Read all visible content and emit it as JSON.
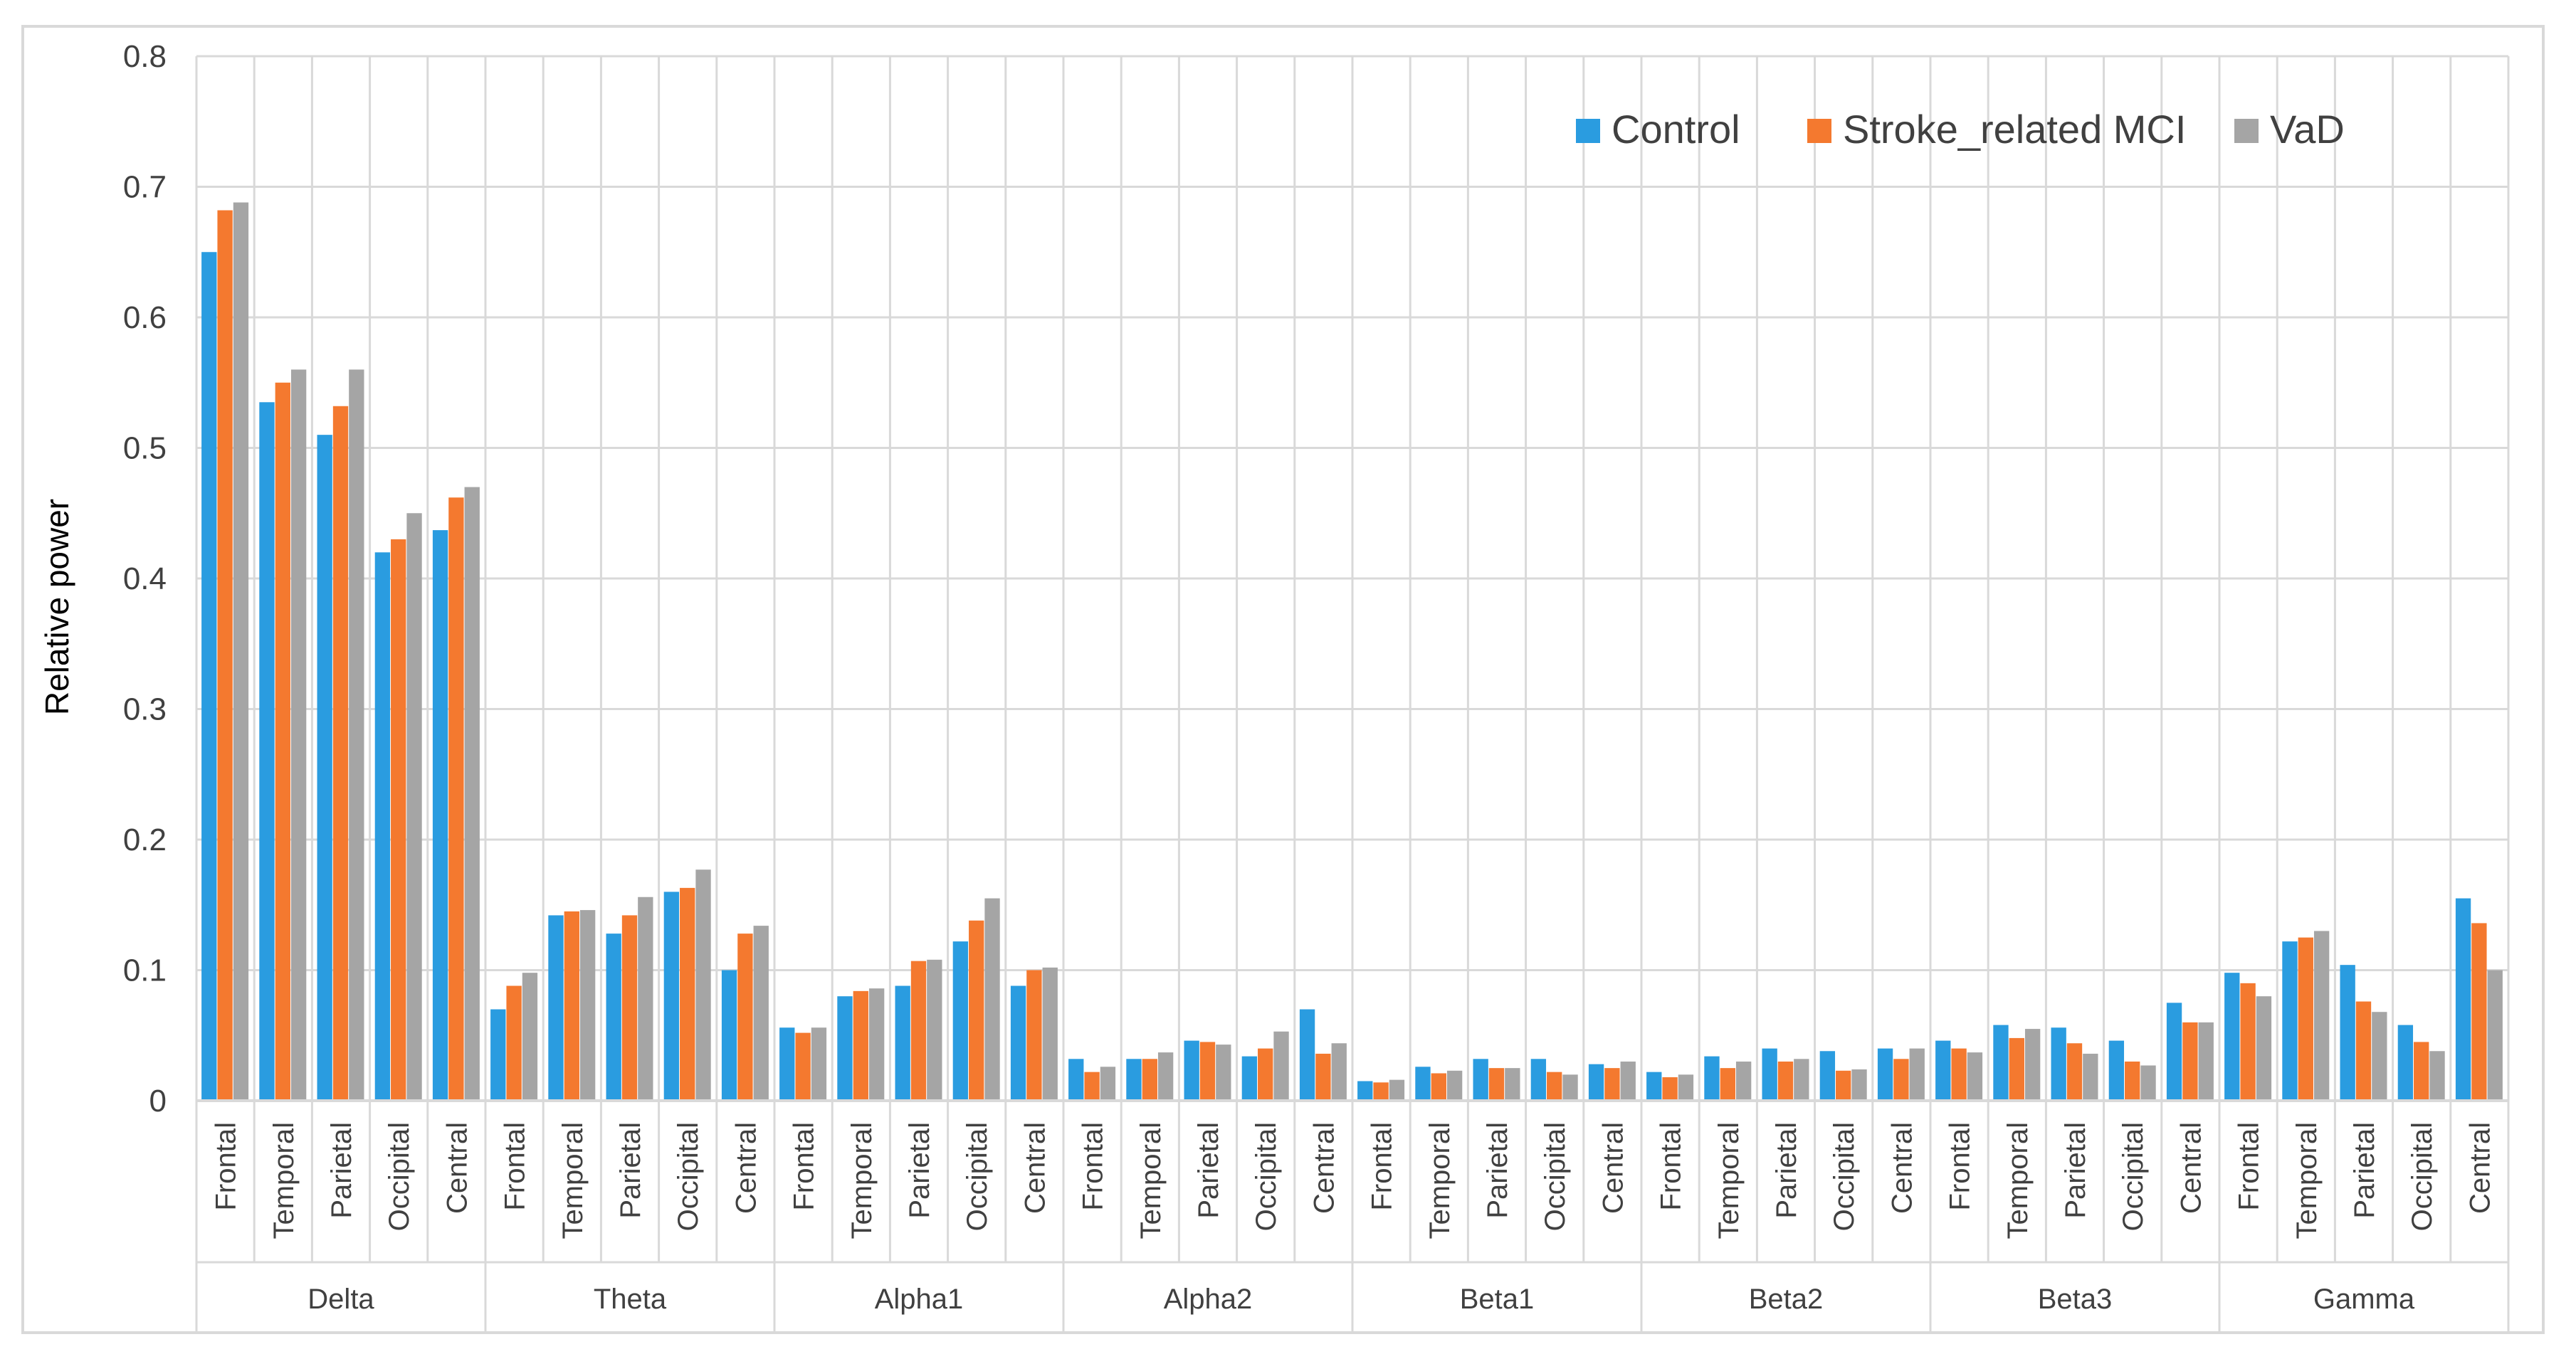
{
  "chart_data": {
    "type": "bar",
    "title": "",
    "xlabel": "",
    "ylabel": "Relative power",
    "ylim": [
      0,
      0.8
    ],
    "yticks": [
      "0",
      "0.1",
      "0.2",
      "0.3",
      "0.4",
      "0.5",
      "0.6",
      "0.7",
      "0.8"
    ],
    "grid": true,
    "legend_position": "top-right",
    "groups": [
      "Delta",
      "Theta",
      "Alpha1",
      "Alpha2",
      "Beta1",
      "Beta2",
      "Beta3",
      "Gamma"
    ],
    "regions": [
      "Frontal",
      "Temporal",
      "Parietal",
      "Occipital",
      "Central"
    ],
    "series": [
      {
        "name": "Control",
        "color": "#2a9ce0",
        "values": [
          0.65,
          0.535,
          0.51,
          0.42,
          0.437,
          0.07,
          0.142,
          0.128,
          0.16,
          0.1,
          0.056,
          0.08,
          0.088,
          0.122,
          0.088,
          0.032,
          0.032,
          0.046,
          0.034,
          0.07,
          0.015,
          0.026,
          0.032,
          0.032,
          0.028,
          0.022,
          0.034,
          0.04,
          0.038,
          0.04,
          0.046,
          0.058,
          0.056,
          0.046,
          0.075,
          0.098,
          0.122,
          0.104,
          0.058,
          0.155
        ]
      },
      {
        "name": "Stroke_related MCI",
        "color": "#f4792f",
        "values": [
          0.682,
          0.55,
          0.532,
          0.43,
          0.462,
          0.088,
          0.145,
          0.142,
          0.163,
          0.128,
          0.052,
          0.084,
          0.107,
          0.138,
          0.1,
          0.022,
          0.032,
          0.045,
          0.04,
          0.036,
          0.014,
          0.021,
          0.025,
          0.022,
          0.025,
          0.018,
          0.025,
          0.03,
          0.023,
          0.032,
          0.04,
          0.048,
          0.044,
          0.03,
          0.06,
          0.09,
          0.125,
          0.076,
          0.045,
          0.136
        ]
      },
      {
        "name": "VaD",
        "color": "#a5a5a5",
        "values": [
          0.688,
          0.56,
          0.56,
          0.45,
          0.47,
          0.098,
          0.146,
          0.156,
          0.177,
          0.134,
          0.056,
          0.086,
          0.108,
          0.155,
          0.102,
          0.026,
          0.037,
          0.043,
          0.053,
          0.044,
          0.016,
          0.023,
          0.025,
          0.02,
          0.03,
          0.02,
          0.03,
          0.032,
          0.024,
          0.04,
          0.037,
          0.055,
          0.036,
          0.027,
          0.06,
          0.08,
          0.13,
          0.068,
          0.038,
          0.1
        ]
      }
    ]
  }
}
